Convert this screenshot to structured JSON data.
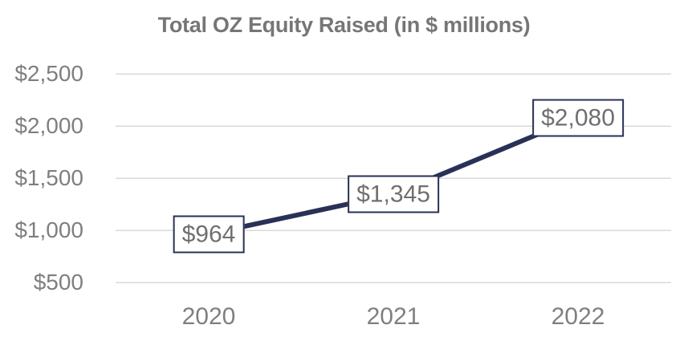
{
  "chart_data": {
    "type": "line",
    "title": "Total OZ Equity Raised (in $ millions)",
    "categories": [
      "2020",
      "2021",
      "2022"
    ],
    "series": [
      {
        "name": "Total OZ Equity Raised",
        "values": [
          964,
          1345,
          2080
        ]
      }
    ],
    "data_labels": [
      "$964",
      "$1,345",
      "$2,080"
    ],
    "y_axis": {
      "min": 500,
      "max": 2500,
      "step": 500,
      "ticks": [
        {
          "value": 500,
          "label": "$500"
        },
        {
          "value": 1000,
          "label": "$1,000"
        },
        {
          "value": 1500,
          "label": "$1,500"
        },
        {
          "value": 2000,
          "label": "$2,000"
        },
        {
          "value": 2500,
          "label": "$2,500"
        }
      ]
    },
    "grid": true,
    "legend": "none",
    "colors": {
      "line": "#293157",
      "label_box_border": "#293157",
      "label_text": "#6f6f6f",
      "grid": "#d9d9d9",
      "title_text": "#767676",
      "axis_text": "#7f7f7f",
      "background": "#ffffff"
    }
  }
}
